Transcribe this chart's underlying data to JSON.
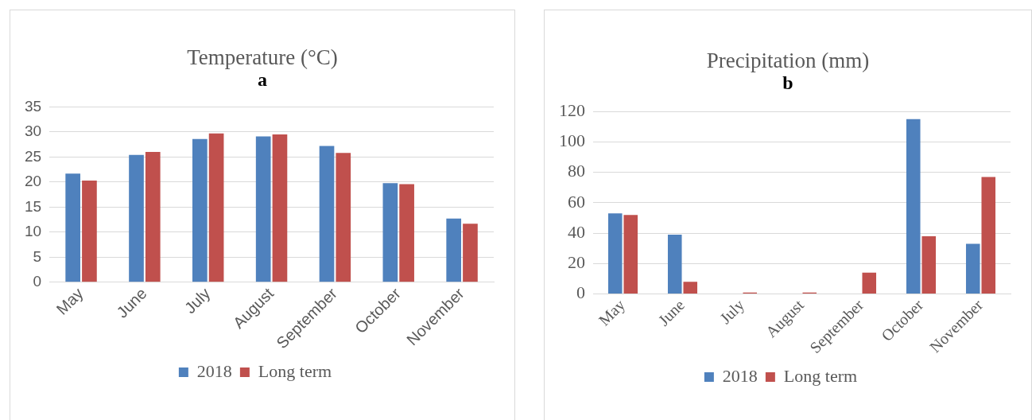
{
  "chart_data": [
    {
      "type": "bar",
      "title": "Temperature (°C)",
      "subtitle": "a",
      "categories": [
        "May",
        "June",
        "July",
        "August",
        "September",
        "October",
        "November"
      ],
      "series": [
        {
          "name": "2018",
          "color": "#4f81bd",
          "values": [
            21.7,
            25.4,
            28.6,
            29.1,
            27.2,
            19.8,
            12.7
          ]
        },
        {
          "name": "Long term",
          "color": "#c0504d",
          "values": [
            20.3,
            26.0,
            29.7,
            29.5,
            25.8,
            19.6,
            11.7
          ]
        }
      ],
      "ylim": [
        0,
        35
      ],
      "yticks": [
        0,
        5,
        10,
        15,
        20,
        25,
        30,
        35
      ],
      "grid": "y",
      "legend": "bottom"
    },
    {
      "type": "bar",
      "title": "Precipitation (mm)",
      "subtitle": "b",
      "categories": [
        "May",
        "June",
        "July",
        "August",
        "September",
        "October",
        "November"
      ],
      "series": [
        {
          "name": "2018",
          "color": "#4f81bd",
          "values": [
            53,
            39,
            0,
            0,
            0,
            115,
            33
          ]
        },
        {
          "name": "Long term",
          "color": "#c0504d",
          "values": [
            52,
            8,
            1,
            1,
            14,
            38,
            77
          ]
        }
      ],
      "ylim": [
        0,
        120
      ],
      "yticks": [
        0,
        20,
        40,
        60,
        80,
        100,
        120
      ],
      "grid": "y",
      "legend": "bottom"
    }
  ]
}
